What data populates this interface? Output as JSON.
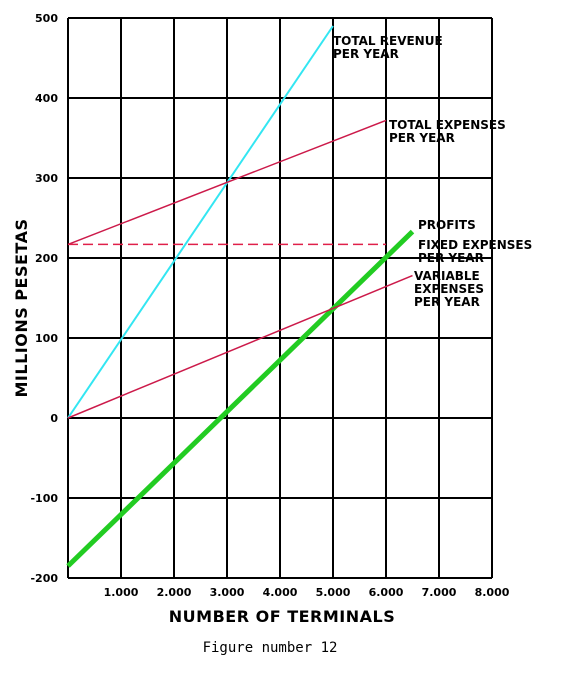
{
  "caption": "Figure number 12",
  "chart_data": {
    "type": "line",
    "title": "",
    "xlabel": "NUMBER OF TERMINALS",
    "ylabel": "MILLIONS   PESETAS",
    "xlim": [
      0,
      8000
    ],
    "ylim": [
      -200,
      500
    ],
    "x_ticks": [
      1000,
      2000,
      3000,
      4000,
      5000,
      6000,
      7000,
      8000
    ],
    "x_tick_labels": [
      "1.000",
      "2.000",
      "3.000",
      "4.000",
      "5.000",
      "6.000",
      "7.000",
      "8.000"
    ],
    "y_ticks": [
      -200,
      -100,
      0,
      100,
      200,
      300,
      400,
      500
    ],
    "y_tick_labels": [
      "-200",
      "-100",
      "0",
      "100",
      "200",
      "300",
      "400",
      "500"
    ],
    "grid": true,
    "series": [
      {
        "name": "TOTAL REVENUE PER YEAR",
        "label_lines": [
          "TOTAL REVENUE",
          "PER YEAR"
        ],
        "color": "#33e6f2",
        "dashed": false,
        "width": 2,
        "x": [
          0,
          5000
        ],
        "y": [
          0,
          490
        ]
      },
      {
        "name": "TOTAL EXPENSES PER YEAR",
        "label_lines": [
          "TOTAL EXPENSES",
          "PER YEAR"
        ],
        "color": "#cc1a4a",
        "dashed": false,
        "width": 1.5,
        "x": [
          0,
          6000
        ],
        "y": [
          217,
          372
        ]
      },
      {
        "name": "PROFITS",
        "label_lines": [
          "PROFITS"
        ],
        "color": "#22cc22",
        "dashed": false,
        "width": 5,
        "x": [
          0,
          6500
        ],
        "y": [
          -185,
          233
        ]
      },
      {
        "name": "FIXED EXPENSES PER YEAR",
        "label_lines": [
          "FIXED EXPENSES",
          "PER YEAR"
        ],
        "color": "#e0204a",
        "dashed": true,
        "width": 1.5,
        "x": [
          0,
          6000
        ],
        "y": [
          217,
          217
        ]
      },
      {
        "name": "VARIABLE EXPENSES PER YEAR",
        "label_lines": [
          "VARIABLE",
          "EXPENSES",
          "PER YEAR"
        ],
        "color": "#cc1a4a",
        "dashed": false,
        "width": 1.5,
        "x": [
          0,
          6500
        ],
        "y": [
          0,
          178
        ]
      }
    ]
  }
}
